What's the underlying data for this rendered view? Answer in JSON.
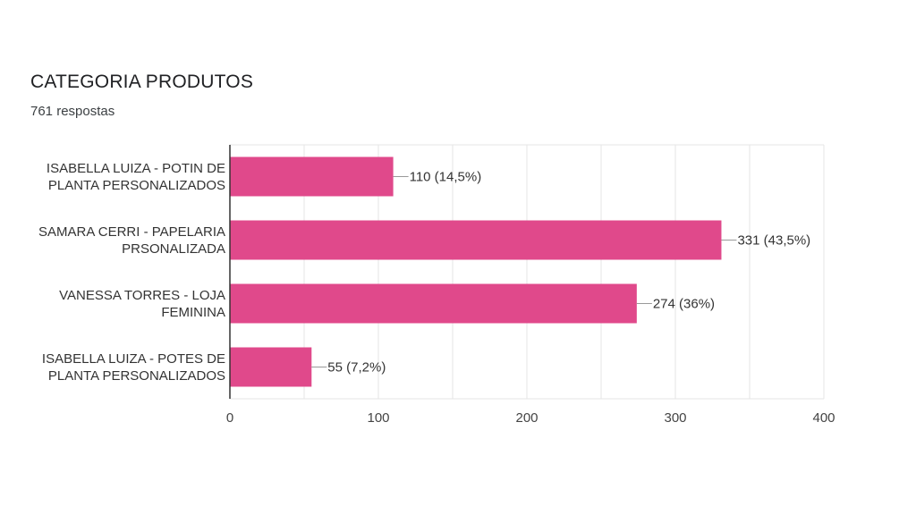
{
  "title": "CATEGORIA PRODUTOS",
  "subtitle": "761 respostas",
  "colors": {
    "bar": "#e0498b",
    "grid": "#e6e6e6",
    "axis": "#333333",
    "leader": "#999999"
  },
  "chart_data": {
    "type": "bar",
    "orientation": "horizontal",
    "title": "CATEGORIA PRODUTOS",
    "xlim": [
      0,
      400
    ],
    "xticks": [
      0,
      100,
      200,
      300,
      400
    ],
    "grid": true,
    "categories": [
      [
        "ISABELLA LUIZA - POTIN DE",
        "PLANTA PERSONALIZADOS"
      ],
      [
        "SAMARA CERRI - PAPELARIA",
        "PRSONALIZADA"
      ],
      [
        "VANESSA TORRES - LOJA",
        "FEMININA"
      ],
      [
        "ISABELLA LUIZA - POTES DE",
        "PLANTA PERSONALIZADOS"
      ]
    ],
    "values": [
      110,
      331,
      274,
      55
    ],
    "data_labels": [
      "110 (14,5%)",
      "331 (43,5%)",
      "274 (36%)",
      "55 (7,2%)"
    ]
  }
}
